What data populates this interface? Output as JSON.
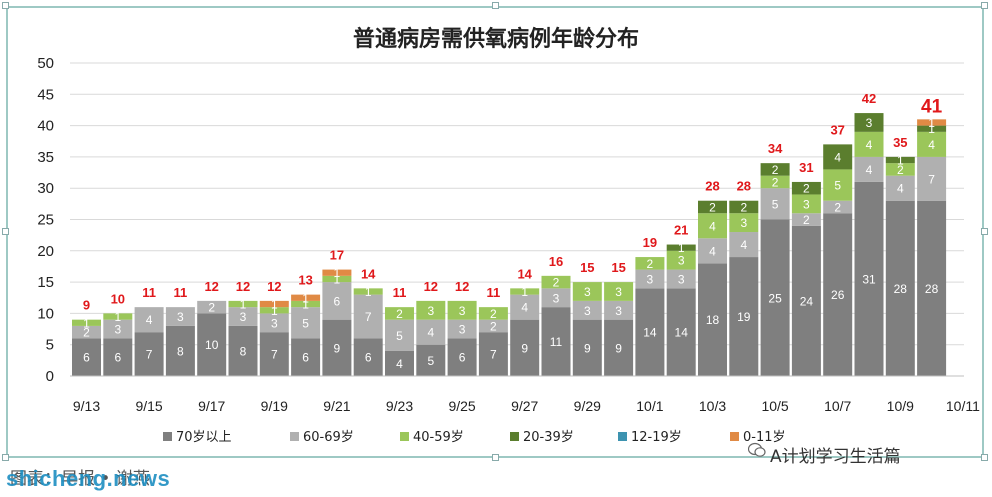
{
  "chart_data": {
    "type": "bar",
    "stacked": true,
    "title": "普通病房需供氧病例年龄分布",
    "ylim": [
      0,
      50
    ],
    "y_ticks": [
      0,
      5,
      10,
      15,
      20,
      25,
      30,
      35,
      40,
      45,
      50
    ],
    "categories": [
      "9/13",
      "9/14",
      "9/15",
      "9/16",
      "9/17",
      "9/18",
      "9/19",
      "9/20",
      "9/21",
      "9/22",
      "9/23",
      "9/24",
      "9/25",
      "9/26",
      "9/27",
      "9/28",
      "9/29",
      "9/30",
      "10/1",
      "10/2",
      "10/3",
      "10/4",
      "10/5",
      "10/6",
      "10/7",
      "10/8",
      "10/9",
      "10/10"
    ],
    "x_tick_labels": [
      "9/13",
      "9/15",
      "9/17",
      "9/19",
      "9/21",
      "9/23",
      "9/25",
      "9/27",
      "9/29",
      "10/1",
      "10/3",
      "10/5",
      "10/7",
      "10/9",
      "10/11"
    ],
    "series": [
      {
        "name": "70岁以上",
        "color": "#7f7f7f",
        "values": [
          6,
          6,
          7,
          8,
          10,
          8,
          7,
          6,
          9,
          6,
          4,
          5,
          6,
          7,
          9,
          11,
          9,
          9,
          14,
          14,
          18,
          19,
          25,
          24,
          26,
          31,
          28,
          28
        ]
      },
      {
        "name": "60-69岁",
        "color": "#b0b0b0",
        "values": [
          2,
          3,
          4,
          3,
          2,
          3,
          3,
          5,
          6,
          7,
          5,
          4,
          3,
          2,
          4,
          3,
          3,
          3,
          3,
          3,
          4,
          4,
          5,
          2,
          2,
          4,
          4,
          7
        ]
      },
      {
        "name": "40-59岁",
        "color": "#9bc65a",
        "values": [
          1,
          1,
          0,
          0,
          0,
          1,
          1,
          1,
          1,
          1,
          2,
          3,
          3,
          2,
          1,
          2,
          3,
          3,
          2,
          3,
          4,
          3,
          2,
          3,
          5,
          4,
          2,
          4
        ]
      },
      {
        "name": "20-39岁",
        "color": "#5b7e2e",
        "values": [
          0,
          0,
          0,
          0,
          0,
          0,
          0,
          0,
          0,
          0,
          0,
          0,
          0,
          0,
          0,
          0,
          0,
          0,
          0,
          1,
          2,
          2,
          2,
          2,
          4,
          3,
          1,
          1
        ]
      },
      {
        "name": "12-19岁",
        "color": "#3d93b0",
        "values": [
          0,
          0,
          0,
          0,
          0,
          0,
          0,
          0,
          0,
          0,
          0,
          0,
          0,
          0,
          0,
          0,
          0,
          0,
          0,
          0,
          0,
          0,
          0,
          0,
          0,
          0,
          0,
          0
        ]
      },
      {
        "name": "0-11岁",
        "color": "#e08a45",
        "values": [
          0,
          0,
          0,
          0,
          0,
          0,
          1,
          1,
          1,
          0,
          0,
          0,
          0,
          0,
          0,
          0,
          0,
          0,
          0,
          0,
          0,
          0,
          0,
          0,
          0,
          0,
          0,
          1
        ]
      }
    ],
    "totals": [
      9,
      10,
      11,
      11,
      12,
      12,
      12,
      13,
      17,
      14,
      11,
      12,
      12,
      11,
      14,
      16,
      15,
      15,
      19,
      21,
      28,
      28,
      34,
      31,
      37,
      42,
      35,
      41
    ],
    "grid": true,
    "legend_position": "bottom"
  },
  "caption": "图表：早报 • 谢燕",
  "watermark": "shicheng.news",
  "brand": "A计划学习生活篇"
}
